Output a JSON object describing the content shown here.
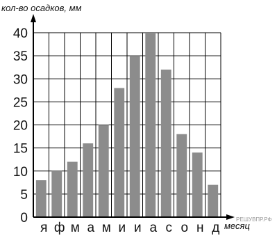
{
  "chart_data": {
    "type": "bar",
    "ylabel": "кол-во осадков, мм",
    "xlabel": "месяц",
    "categories": [
      "я",
      "ф",
      "м",
      "а",
      "м",
      "и",
      "и",
      "а",
      "с",
      "о",
      "н",
      "д"
    ],
    "values": [
      8,
      10,
      12,
      16,
      20,
      28,
      35,
      40,
      32,
      18,
      14,
      7
    ],
    "ylim": [
      0,
      40
    ],
    "yticks": [
      0,
      5,
      10,
      15,
      20,
      25,
      30,
      35,
      40
    ],
    "grid": true,
    "colors": {
      "bar": "#8c8c8c",
      "grid": "#000000",
      "axis": "#000000"
    }
  },
  "watermark": "РЕШУВПР.РФ"
}
